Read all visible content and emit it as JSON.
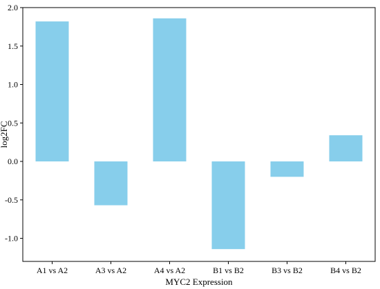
{
  "chart_data": {
    "type": "bar",
    "title": "",
    "xlabel": "MYC2 Expression",
    "ylabel": "log2FC",
    "categories": [
      "A1 vs A2",
      "A3 vs A2",
      "A4 vs A2",
      "B1 vs B2",
      "B3 vs B2",
      "B4 vs B2"
    ],
    "values": [
      1.82,
      -0.57,
      1.86,
      -1.14,
      -0.2,
      0.34
    ],
    "ylim": [
      -1.3,
      2.0
    ],
    "yticks": [
      2.0,
      1.5,
      1.0,
      0.5,
      0.0,
      -0.5,
      -1.0
    ],
    "ytick_labels": [
      "2.0",
      "1.5",
      "1.0",
      "0.5",
      "0.0",
      "-0.5",
      "-1.0"
    ],
    "bar_color": "#87CEEB",
    "grid": false,
    "legend": "none"
  }
}
